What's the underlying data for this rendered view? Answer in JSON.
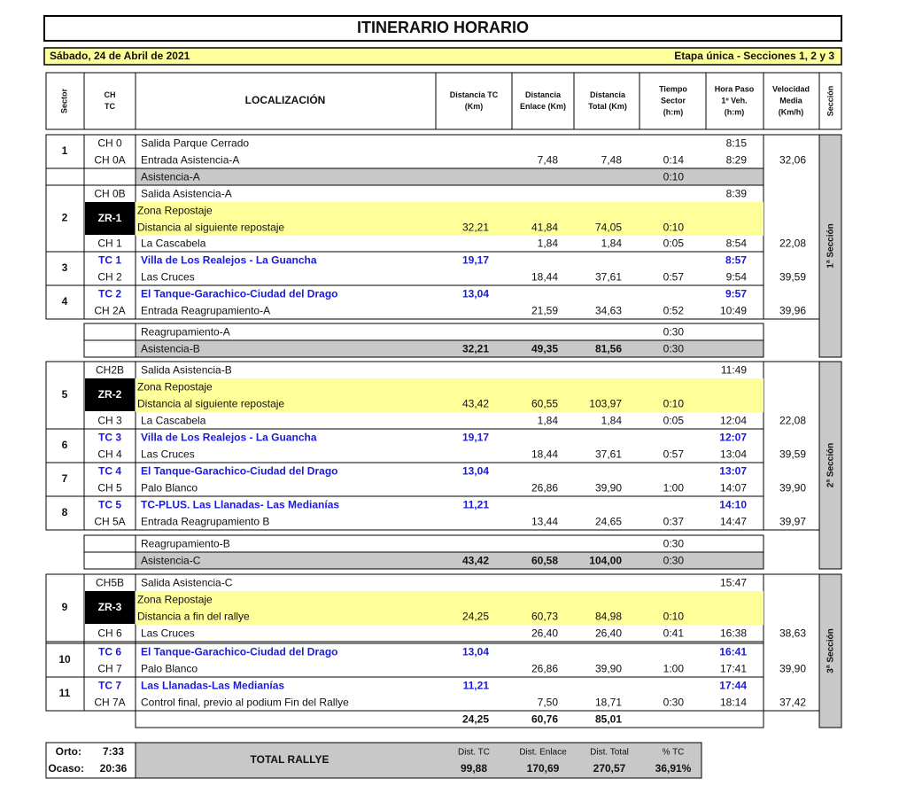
{
  "title": "ITINERARIO HORARIO",
  "date": "Sábado, 24 de Abril de 2021",
  "stage": "Etapa única - Secciones 1, 2 y 3",
  "headers": {
    "sector": "Sector",
    "ch": [
      "CH",
      "TC"
    ],
    "loc": "LOCALIZACIÓN",
    "tc": [
      "Distancia TC",
      "(Km)"
    ],
    "enl": [
      "Distancia",
      "Enlace (Km)"
    ],
    "tot": [
      "Distancia",
      "Total (Km)"
    ],
    "time": [
      "Tiempo",
      "Sector",
      "(h:m)"
    ],
    "hora": [
      "Hora Paso",
      "1º Veh.",
      "(h:m)"
    ],
    "vel": [
      "Velocidad",
      "Media",
      "(Km/h)"
    ],
    "section": "Sección"
  },
  "sectors": [
    "1",
    "2",
    "3",
    "4",
    "5",
    "6",
    "7",
    "8",
    "9",
    "10",
    "11"
  ],
  "zones": [
    "ZR-1",
    "ZR-2",
    "ZR-3"
  ],
  "sections": [
    "1ª Sección",
    "2ª Sección",
    "3ª Sección"
  ],
  "rows": [
    {
      "ch": "CH 0",
      "loc": "Salida Parque Cerrado",
      "hora": "8:15"
    },
    {
      "ch": "CH 0A",
      "loc": "Entrada Asistencia-A",
      "enl": "7,48",
      "tot": "7,48",
      "time": "0:14",
      "hora": "8:29",
      "vel": "32,06"
    },
    {
      "loc": "Asistencia-A",
      "time": "0:10"
    },
    {
      "ch": "CH 0B",
      "loc": "Salida Asistencia-A",
      "hora": "8:39"
    },
    {
      "loc": "Zona Repostaje"
    },
    {
      "loc": "Distancia al siguiente repostaje",
      "tc": "32,21",
      "enl": "41,84",
      "tot": "74,05",
      "time": "0:10"
    },
    {
      "ch": "CH 1",
      "loc": "La Cascabela",
      "enl": "1,84",
      "tot": "1,84",
      "time": "0:05",
      "hora": "8:54",
      "vel": "22,08"
    },
    {
      "ch": "TC 1",
      "loc": "Villa de Los Realejos - La Guancha",
      "tc": "19,17",
      "hora": "8:57"
    },
    {
      "ch": "CH 2",
      "loc": "Las Cruces",
      "enl": "18,44",
      "tot": "37,61",
      "time": "0:57",
      "hora": "9:54",
      "vel": "39,59"
    },
    {
      "ch": "TC 2",
      "loc": "El Tanque-Garachico-Ciudad del Drago",
      "tc": "13,04",
      "hora": "9:57"
    },
    {
      "ch": "CH 2A",
      "loc": "Entrada Reagrupamiento-A",
      "enl": "21,59",
      "tot": "34,63",
      "time": "0:52",
      "hora": "10:49",
      "vel": "39,96"
    },
    {
      "loc": "Reagrupamiento-A",
      "time": "0:30"
    },
    {
      "loc": "Asistencia-B",
      "tc": "32,21",
      "enl": "49,35",
      "tot": "81,56",
      "time": "0:30"
    },
    {
      "ch": "CH2B",
      "loc": "Salida Asistencia-B",
      "hora": "11:49"
    },
    {
      "loc": "Zona Repostaje"
    },
    {
      "loc": "Distancia al siguiente repostaje",
      "tc": "43,42",
      "enl": "60,55",
      "tot": "103,97",
      "time": "0:10"
    },
    {
      "ch": "CH 3",
      "loc": "La Cascabela",
      "enl": "1,84",
      "tot": "1,84",
      "time": "0:05",
      "hora": "12:04",
      "vel": "22,08"
    },
    {
      "ch": "TC 3",
      "loc": "Villa de Los Realejos - La Guancha",
      "tc": "19,17",
      "hora": "12:07"
    },
    {
      "ch": "CH 4",
      "loc": "Las Cruces",
      "enl": "18,44",
      "tot": "37,61",
      "time": "0:57",
      "hora": "13:04",
      "vel": "39,59"
    },
    {
      "ch": "TC 4",
      "loc": "El Tanque-Garachico-Ciudad del Drago",
      "tc": "13,04",
      "hora": "13:07"
    },
    {
      "ch": "CH 5",
      "loc": "Palo Blanco",
      "enl": "26,86",
      "tot": "39,90",
      "time": "1:00",
      "hora": "14:07",
      "vel": "39,90"
    },
    {
      "ch": "TC 5",
      "loc": "TC-PLUS. Las Llanadas- Las Medianías",
      "tc": "11,21",
      "hora": "14:10"
    },
    {
      "ch": "CH 5A",
      "loc": "Entrada Reagrupamiento B",
      "enl": "13,44",
      "tot": "24,65",
      "time": "0:37",
      "hora": "14:47",
      "vel": "39,97"
    },
    {
      "loc": "Reagrupamiento-B",
      "time": "0:30"
    },
    {
      "loc": "Asistencia-C",
      "tc": "43,42",
      "enl": "60,58",
      "tot": "104,00",
      "time": "0:30"
    },
    {
      "ch": "CH5B",
      "loc": "Salida Asistencia-C",
      "hora": "15:47"
    },
    {
      "loc": "Zona Repostaje"
    },
    {
      "loc": "Distancia a fin del rallye",
      "tc": "24,25",
      "enl": "60,73",
      "tot": "84,98",
      "time": "0:10"
    },
    {
      "ch": "CH 6",
      "loc": "Las Cruces",
      "enl": "26,40",
      "tot": "26,40",
      "time": "0:41",
      "hora": "16:38",
      "vel": "38,63"
    },
    {
      "ch": "TC 6",
      "loc": "El Tanque-Garachico-Ciudad del Drago",
      "tc": "13,04",
      "hora": "16:41"
    },
    {
      "ch": "CH 7",
      "loc": "Palo Blanco",
      "enl": "26,86",
      "tot": "39,90",
      "time": "1:00",
      "hora": "17:41",
      "vel": "39,90"
    },
    {
      "ch": "TC 7",
      "loc": "Las Llanadas-Las Medianías",
      "tc": "11,21",
      "hora": "17:44"
    },
    {
      "ch": "CH 7A",
      "loc": "Control final, previo al podium Fin del Rallye",
      "enl": "7,50",
      "tot": "18,71",
      "time": "0:30",
      "hora": "18:14",
      "vel": "37,42"
    },
    {
      "tc": "24,25",
      "enl": "60,76",
      "tot": "85,01"
    }
  ],
  "footer": {
    "orto_label": "Orto:",
    "orto": "7:33",
    "ocaso_label": "Ocaso:",
    "ocaso": "20:36",
    "total_label": "TOTAL RALLYE",
    "columns": [
      {
        "label": "Dist. TC",
        "value": "99,88"
      },
      {
        "label": "Dist. Enlace",
        "value": "170,69"
      },
      {
        "label": "Dist. Total",
        "value": "270,57"
      },
      {
        "label": "% TC",
        "value": "36,91%"
      }
    ]
  }
}
